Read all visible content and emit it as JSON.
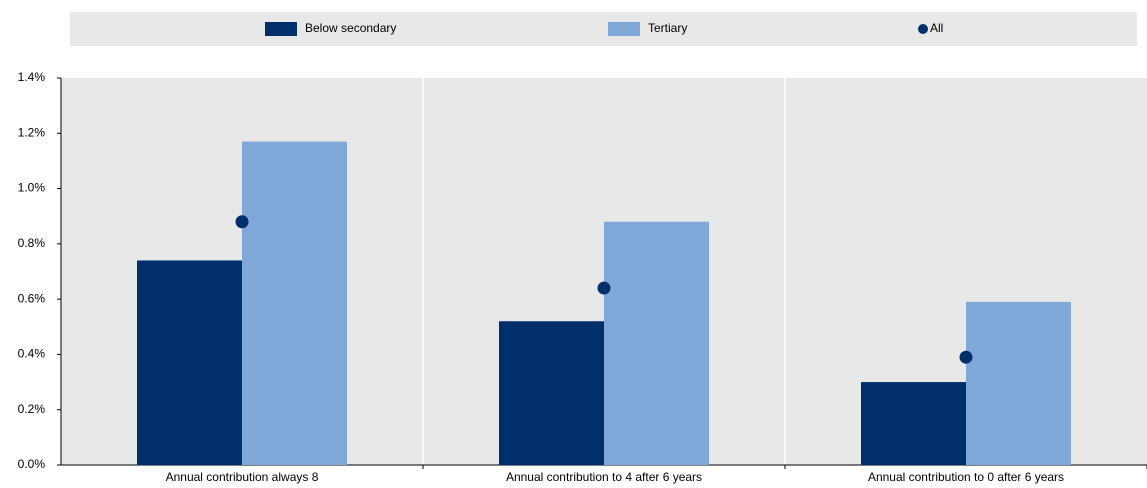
{
  "chart_data": {
    "type": "bar",
    "categories": [
      "Annual contribution always 8",
      "Annual contribution to 4 after 6 years",
      "Annual contribution to 0 after 6 years"
    ],
    "series": [
      {
        "name": "Below secondary",
        "color": "#002f6c",
        "mark": "bar",
        "values": [
          0.74,
          0.52,
          0.3
        ]
      },
      {
        "name": "Tertiary",
        "color": "#7fa8d9",
        "mark": "bar",
        "values": [
          1.17,
          0.88,
          0.59
        ]
      },
      {
        "name": "All",
        "color": "#002f6c",
        "mark": "dot",
        "values": [
          0.88,
          0.64,
          0.39
        ]
      }
    ],
    "ylim": [
      0,
      1.4
    ],
    "yticks": [
      {
        "value": 0,
        "label": "0.0%"
      },
      {
        "value": 0.2,
        "label": "0.2%"
      },
      {
        "value": 0.4,
        "label": "0.4%"
      },
      {
        "value": 0.6,
        "label": "0.6%"
      },
      {
        "value": 0.8,
        "label": "0.8%"
      },
      {
        "value": 1.0,
        "label": "1.0%"
      },
      {
        "value": 1.2,
        "label": "1.2%"
      },
      {
        "value": 1.4,
        "label": "1.4%"
      }
    ],
    "grid": false,
    "legend": "top"
  }
}
